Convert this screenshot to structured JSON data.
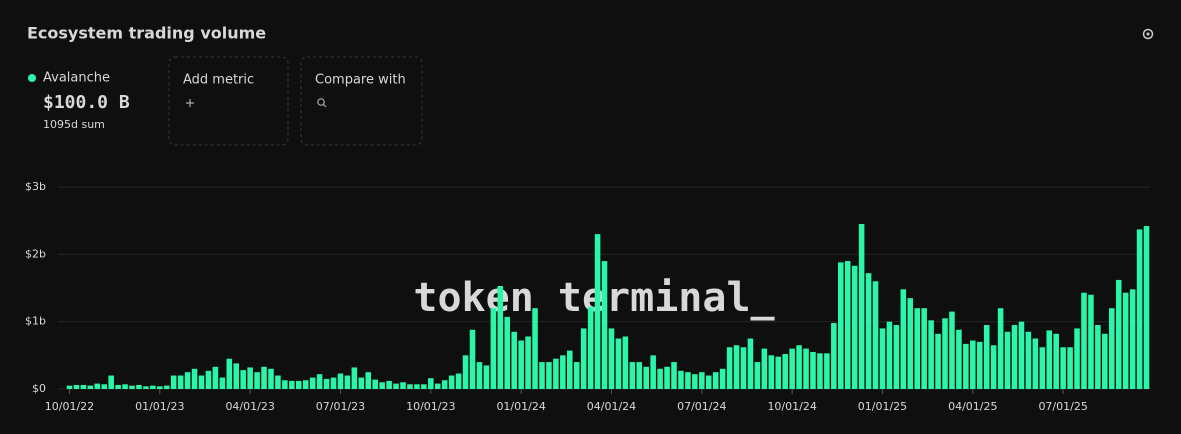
{
  "chart_data": {
    "type": "bar",
    "title": "Ecosystem trading volume",
    "series": [
      {
        "name": "Avalanche",
        "color": "#2af5a8",
        "values": [
          0.05,
          0.06,
          0.06,
          0.05,
          0.08,
          0.07,
          0.2,
          0.06,
          0.07,
          0.05,
          0.06,
          0.04,
          0.05,
          0.04,
          0.05,
          0.2,
          0.2,
          0.25,
          0.3,
          0.2,
          0.27,
          0.33,
          0.17,
          0.45,
          0.38,
          0.28,
          0.32,
          0.25,
          0.33,
          0.3,
          0.2,
          0.13,
          0.12,
          0.12,
          0.13,
          0.17,
          0.22,
          0.15,
          0.17,
          0.23,
          0.2,
          0.32,
          0.17,
          0.25,
          0.14,
          0.1,
          0.12,
          0.08,
          0.1,
          0.07,
          0.07,
          0.07,
          0.16,
          0.08,
          0.13,
          0.2,
          0.23,
          0.5,
          0.88,
          0.4,
          0.35,
          1.2,
          1.53,
          1.07,
          0.85,
          0.72,
          0.78,
          1.2,
          0.4,
          0.4,
          0.45,
          0.5,
          0.57,
          0.4,
          0.9,
          1.22,
          2.3,
          1.9,
          0.9,
          0.75,
          0.78,
          0.4,
          0.4,
          0.33,
          0.5,
          0.3,
          0.33,
          0.4,
          0.27,
          0.25,
          0.22,
          0.25,
          0.2,
          0.25,
          0.3,
          0.62,
          0.65,
          0.62,
          0.75,
          0.4,
          0.6,
          0.5,
          0.48,
          0.52,
          0.6,
          0.65,
          0.6,
          0.55,
          0.53,
          0.53,
          0.98,
          1.88,
          1.9,
          1.83,
          2.45,
          1.72,
          1.6,
          0.9,
          1.0,
          0.95,
          1.48,
          1.35,
          1.2,
          1.2,
          1.02,
          0.82,
          1.05,
          1.15,
          0.88,
          0.67,
          0.72,
          0.7,
          0.95,
          0.65,
          1.2,
          0.85,
          0.95,
          1.0,
          0.85,
          0.75,
          0.62,
          0.87,
          0.82,
          0.62,
          0.62,
          0.9,
          1.43,
          1.4,
          0.95,
          0.82,
          1.2,
          1.62,
          1.43,
          1.48,
          2.37,
          2.42
        ]
      }
    ],
    "categories": [
      "10/01/22",
      null,
      null,
      null,
      null,
      null,
      null,
      null,
      null,
      null,
      null,
      null,
      null,
      "01/01/23",
      null,
      null,
      null,
      null,
      null,
      null,
      null,
      null,
      null,
      null,
      null,
      null,
      "04/01/23",
      null,
      null,
      null,
      null,
      null,
      null,
      null,
      null,
      null,
      null,
      null,
      null,
      "07/01/23",
      null,
      null,
      null,
      null,
      null,
      null,
      null,
      null,
      null,
      null,
      null,
      null,
      "10/01/23",
      null,
      null,
      null,
      null,
      null,
      null,
      null,
      null,
      null,
      null,
      null,
      null,
      "01/01/24",
      null,
      null,
      null,
      null,
      null,
      null,
      null,
      null,
      null,
      null,
      null,
      null,
      "04/01/24",
      null,
      null,
      null,
      null,
      null,
      null,
      null,
      null,
      null,
      null,
      null,
      null,
      "07/01/24",
      null,
      null,
      null,
      null,
      null,
      null,
      null,
      null,
      null,
      null,
      null,
      null,
      "10/01/24",
      null,
      null,
      null,
      null,
      null,
      null,
      null,
      null,
      null,
      null,
      null,
      null,
      "01/01/25",
      null,
      null,
      null,
      null,
      null,
      null,
      null,
      null,
      null,
      null,
      null,
      null,
      "04/01/25",
      null,
      null,
      null,
      null,
      null,
      null,
      null,
      null,
      null,
      null,
      null,
      null,
      "07/01/25",
      null,
      null,
      null,
      null,
      null,
      null,
      null,
      null,
      null,
      null,
      null,
      null
    ],
    "ylim": [
      0,
      3
    ],
    "yticks": [
      {
        "value": 0,
        "label": "$0"
      },
      {
        "value": 1,
        "label": "$1b"
      },
      {
        "value": 2,
        "label": "$2b"
      },
      {
        "value": 3,
        "label": "$3b"
      }
    ],
    "grid": true
  },
  "summary": {
    "value": "$100.0 B",
    "period": "1095d sum"
  },
  "controls": [
    "Add metric",
    "Compare with"
  ],
  "watermark": "token terminal_"
}
